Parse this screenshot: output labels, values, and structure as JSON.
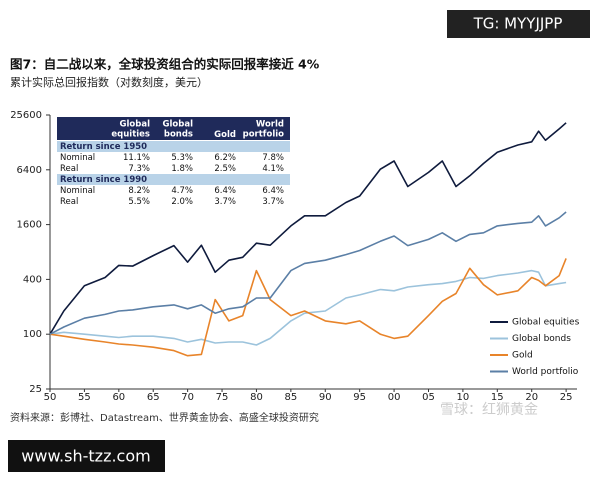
{
  "header": {
    "badge": "TG: MYYJJPP"
  },
  "footer": {
    "website": "www.sh-tzz.com",
    "watermark": "雪球：红狮黄金"
  },
  "chart_data": {
    "type": "line",
    "title": "图7：自二战以来，全球投资组合的实际回报率接近 4%",
    "subtitle": "累计实际总回报指数（对数刻度，美元）",
    "source": "资料来源：彭博社、Datastream、世界黄金协会、高盛全球投资研究",
    "log_scale": true,
    "grid": false,
    "legend": "lower right",
    "xlim": [
      1950,
      2026
    ],
    "xticks": [
      {
        "value": 1950,
        "label": "50"
      },
      {
        "value": 1955,
        "label": "55"
      },
      {
        "value": 1960,
        "label": "60"
      },
      {
        "value": 1965,
        "label": "65"
      },
      {
        "value": 1970,
        "label": "70"
      },
      {
        "value": 1975,
        "label": "75"
      },
      {
        "value": 1980,
        "label": "80"
      },
      {
        "value": 1985,
        "label": "85"
      },
      {
        "value": 1990,
        "label": "90"
      },
      {
        "value": 1995,
        "label": "95"
      },
      {
        "value": 2000,
        "label": "00"
      },
      {
        "value": 2005,
        "label": "05"
      },
      {
        "value": 2010,
        "label": "10"
      },
      {
        "value": 2015,
        "label": "15"
      },
      {
        "value": 2020,
        "label": "20"
      },
      {
        "value": 2025,
        "label": "25"
      }
    ],
    "ylim": [
      25,
      25600
    ],
    "yticks": [
      25,
      100,
      400,
      1600,
      6400,
      25600
    ],
    "x": [
      1950,
      1952,
      1955,
      1958,
      1960,
      1962,
      1965,
      1968,
      1970,
      1972,
      1974,
      1976,
      1978,
      1980,
      1982,
      1985,
      1987,
      1990,
      1993,
      1995,
      1998,
      2000,
      2002,
      2005,
      2007,
      2009,
      2011,
      2013,
      2015,
      2018,
      2020,
      2021,
      2022,
      2024,
      2025
    ],
    "series": [
      {
        "name": "Global equities",
        "color": "#0f1b3d",
        "values": [
          100,
          180,
          340,
          420,
          570,
          560,
          730,
          940,
          620,
          950,
          480,
          650,
          700,
          1000,
          950,
          1550,
          2000,
          2000,
          2800,
          3300,
          6500,
          8000,
          4200,
          6000,
          8000,
          4200,
          5500,
          7500,
          10000,
          12000,
          13000,
          17000,
          13500,
          18000,
          21000
        ]
      },
      {
        "name": "Global bonds",
        "color": "#9cc3dc",
        "values": [
          100,
          105,
          100,
          95,
          92,
          95,
          95,
          90,
          82,
          88,
          80,
          82,
          82,
          76,
          90,
          140,
          170,
          180,
          250,
          270,
          310,
          300,
          330,
          350,
          360,
          380,
          420,
          410,
          440,
          470,
          500,
          480,
          340,
          360,
          370
        ]
      },
      {
        "name": "Gold",
        "color": "#e8842a",
        "values": [
          100,
          95,
          88,
          82,
          78,
          76,
          72,
          66,
          58,
          60,
          240,
          140,
          160,
          500,
          240,
          160,
          180,
          140,
          130,
          140,
          100,
          90,
          95,
          160,
          230,
          280,
          530,
          350,
          270,
          300,
          420,
          390,
          340,
          440,
          680
        ]
      },
      {
        "name": "World portfolio",
        "color": "#5b7fa6",
        "values": [
          100,
          120,
          150,
          165,
          180,
          185,
          200,
          210,
          190,
          210,
          170,
          190,
          200,
          250,
          250,
          500,
          600,
          650,
          750,
          830,
          1050,
          1200,
          940,
          1100,
          1300,
          1050,
          1250,
          1300,
          1550,
          1650,
          1700,
          2000,
          1550,
          1900,
          2200
        ]
      }
    ],
    "table": {
      "header": [
        "Global equities",
        "Global bonds",
        "Gold",
        "World portfolio"
      ],
      "sections": [
        {
          "title": "Return since 1950",
          "rows": [
            {
              "label": "Nominal",
              "values": [
                "11.1%",
                "5.3%",
                "6.2%",
                "7.8%"
              ]
            },
            {
              "label": "Real",
              "values": [
                "7.3%",
                "1.8%",
                "2.5%",
                "4.1%"
              ]
            }
          ]
        },
        {
          "title": "Return since 1990",
          "rows": [
            {
              "label": "Nominal",
              "values": [
                "8.2%",
                "4.7%",
                "6.4%",
                "6.4%"
              ]
            },
            {
              "label": "Real",
              "values": [
                "5.5%",
                "2.0%",
                "3.7%",
                "3.7%"
              ]
            }
          ]
        }
      ]
    }
  }
}
